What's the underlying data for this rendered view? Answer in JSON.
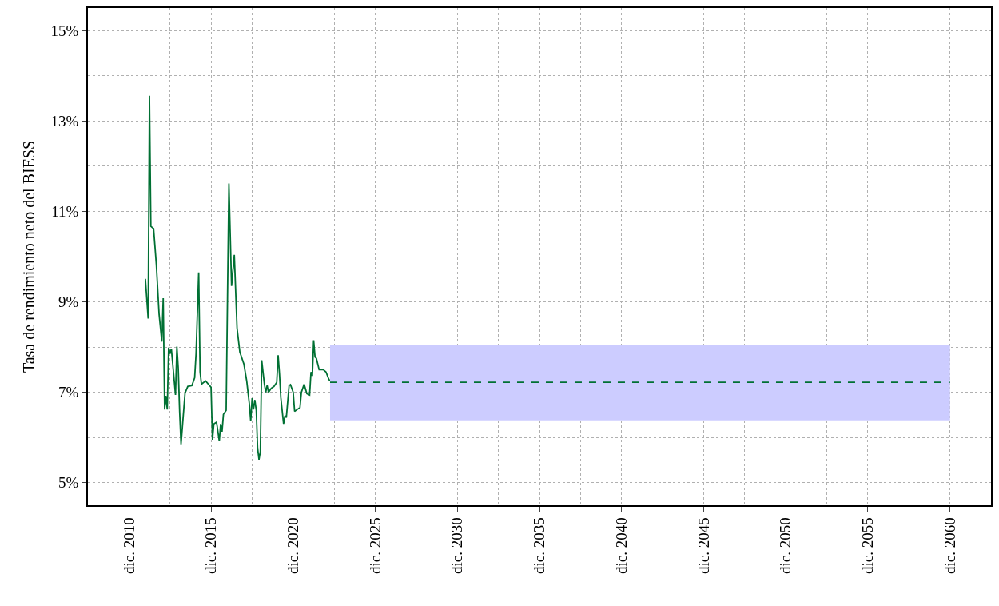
{
  "chart_data": {
    "type": "line",
    "ylabel": "Tasa de rendimiento neto del BIESS",
    "xlim": [
      "2008-06",
      "2063-06"
    ],
    "ylim": [
      4.5,
      15.5
    ],
    "xticks": [
      {
        "value": "2010-12",
        "label": "dic. 2010"
      },
      {
        "value": "2015-12",
        "label": "dic. 2015"
      },
      {
        "value": "2020-12",
        "label": "dic. 2020"
      },
      {
        "value": "2025-12",
        "label": "dic. 2025"
      },
      {
        "value": "2030-12",
        "label": "dic. 2030"
      },
      {
        "value": "2035-12",
        "label": "dic. 2035"
      },
      {
        "value": "2040-12",
        "label": "dic. 2040"
      },
      {
        "value": "2045-12",
        "label": "dic. 2045"
      },
      {
        "value": "2050-12",
        "label": "dic. 2050"
      },
      {
        "value": "2055-12",
        "label": "dic. 2055"
      },
      {
        "value": "2060-12",
        "label": "dic. 2060"
      }
    ],
    "yticks": [
      {
        "value": 5,
        "label": "5%"
      },
      {
        "value": 7,
        "label": "7%"
      },
      {
        "value": 9,
        "label": "9%"
      },
      {
        "value": 11,
        "label": "11%"
      },
      {
        "value": 13,
        "label": "13%"
      },
      {
        "value": 15,
        "label": "15%"
      }
    ],
    "grid": true,
    "series": [
      {
        "color": "#007033",
        "line_style": "solid",
        "x": [
          "2011-12",
          "2012-02",
          "2012-03",
          "2012-04",
          "2012-06",
          "2012-08",
          "2012-10",
          "2012-12",
          "2013-01",
          "2013-02",
          "2013-03",
          "2013-04",
          "2013-05",
          "2013-06",
          "2013-07",
          "2013-08",
          "2013-10",
          "2013-11",
          "2013-12",
          "2014-01",
          "2014-02",
          "2014-05",
          "2014-07",
          "2014-10",
          "2014-12",
          "2015-01",
          "2015-03",
          "2015-04",
          "2015-05",
          "2015-08",
          "2015-10",
          "2015-12",
          "2016-01",
          "2016-02",
          "2016-04",
          "2016-06",
          "2016-07",
          "2016-08",
          "2016-09",
          "2016-11",
          "2016-12",
          "2017-01",
          "2017-03",
          "2017-05",
          "2017-07",
          "2017-09",
          "2017-12",
          "2018-02",
          "2018-04",
          "2018-05",
          "2018-06",
          "2018-07",
          "2018-08",
          "2018-09",
          "2018-10",
          "2018-11",
          "2018-12",
          "2019-01",
          "2019-03",
          "2019-04",
          "2019-05",
          "2019-06",
          "2019-08",
          "2019-10",
          "2019-12",
          "2020-01",
          "2020-02",
          "2020-03",
          "2020-05",
          "2020-06",
          "2020-07",
          "2020-09",
          "2020-10",
          "2020-12",
          "2021-01",
          "2021-03",
          "2021-05",
          "2021-06",
          "2021-08",
          "2021-10",
          "2021-12",
          "2022-01",
          "2022-02",
          "2022-03",
          "2022-04",
          "2022-05",
          "2022-07",
          "2022-10",
          "2022-12",
          "2023-02",
          "2023-03"
        ],
        "values": [
          9.51,
          8.63,
          13.56,
          10.67,
          10.62,
          9.82,
          8.73,
          8.12,
          9.08,
          6.62,
          6.92,
          6.62,
          7.99,
          7.85,
          7.96,
          7.62,
          6.94,
          8.01,
          7.54,
          6.57,
          5.85,
          6.98,
          7.13,
          7.15,
          7.32,
          7.85,
          9.65,
          7.45,
          7.18,
          7.25,
          7.18,
          7.11,
          5.95,
          6.3,
          6.34,
          5.92,
          6.3,
          6.13,
          6.51,
          6.6,
          9.12,
          11.62,
          9.35,
          10.04,
          8.42,
          7.89,
          7.62,
          7.25,
          6.74,
          6.36,
          6.87,
          6.62,
          6.83,
          6.6,
          5.77,
          5.51,
          5.69,
          7.71,
          7.18,
          7.0,
          7.15,
          7.0,
          7.09,
          7.13,
          7.22,
          7.82,
          7.39,
          6.88,
          6.3,
          6.48,
          6.44,
          7.15,
          7.17,
          7.0,
          6.58,
          6.62,
          6.66,
          7.0,
          7.18,
          6.97,
          6.94,
          7.45,
          7.36,
          8.15,
          7.78,
          7.75,
          7.5,
          7.5,
          7.45,
          7.29,
          7.25
        ]
      },
      {
        "color": "#007033",
        "line_style": "dashed",
        "x": [
          "2023-03",
          "2060-12"
        ],
        "values": [
          7.22,
          7.22
        ],
        "lower": [
          6.38,
          6.38
        ],
        "upper": [
          8.05,
          8.05
        ]
      }
    ]
  }
}
